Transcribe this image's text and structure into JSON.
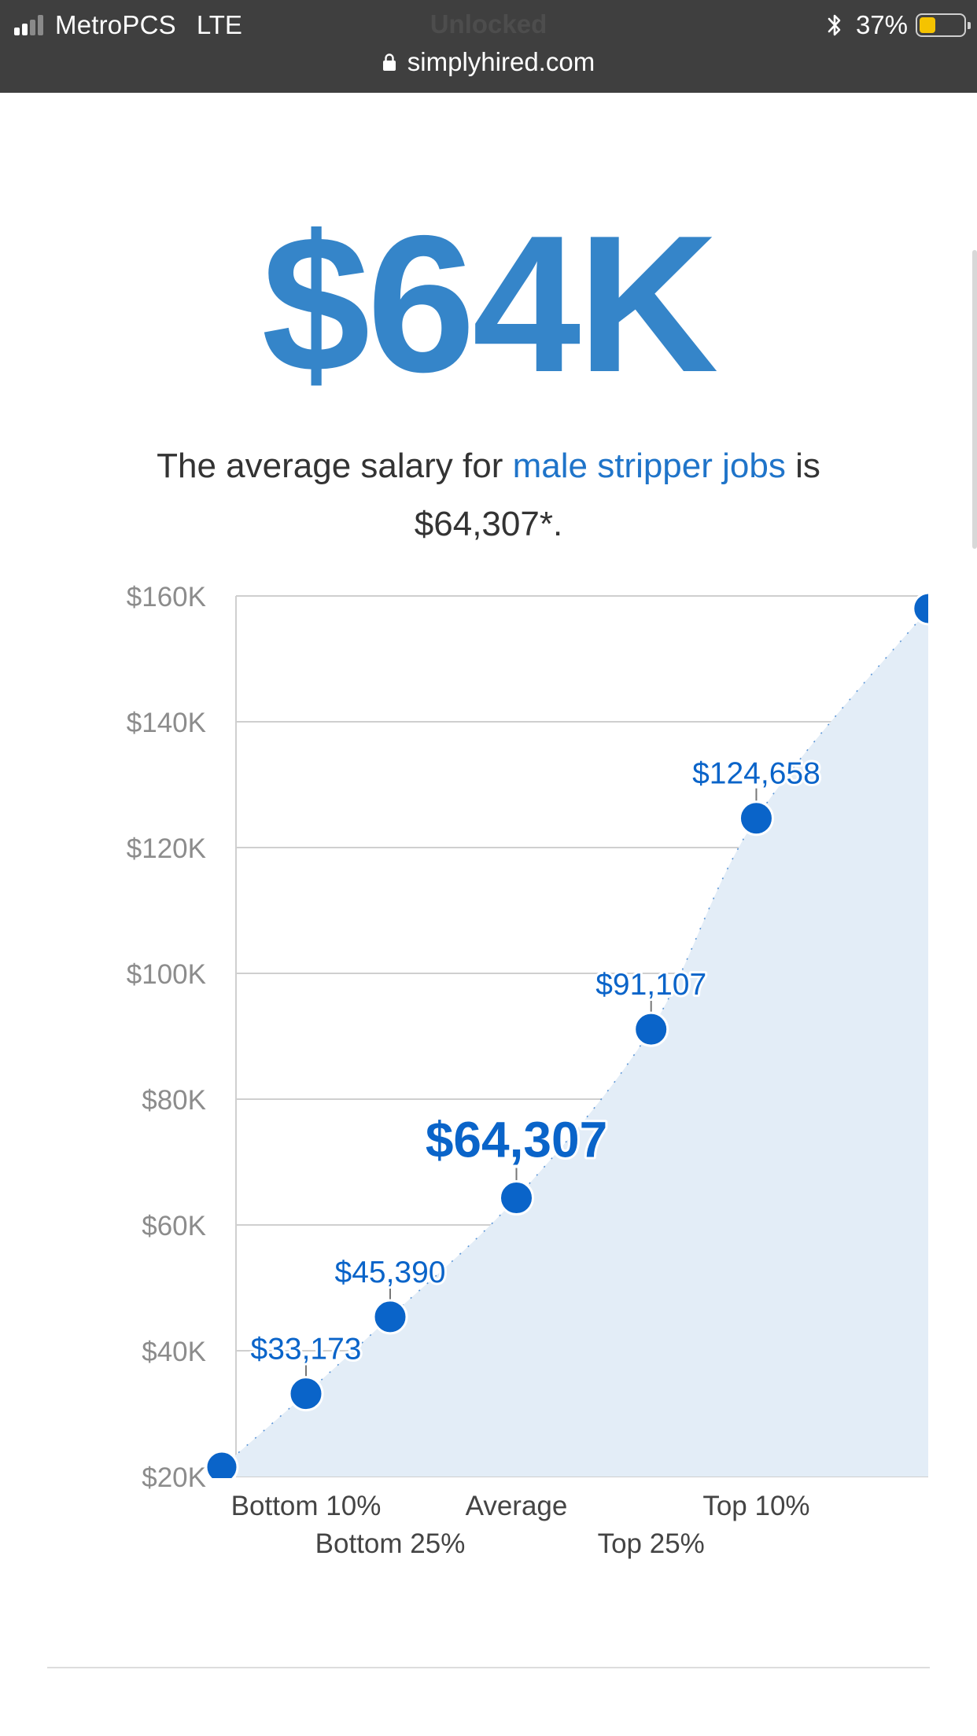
{
  "status_bar": {
    "carrier": "MetroPCS",
    "network": "LTE",
    "center_text": "Unlocked",
    "battery_percent": "37%",
    "battery_level": 0.37,
    "url": "simplyhired.com",
    "icons": [
      "signal-icon",
      "bluetooth-icon",
      "battery-icon",
      "lock-icon"
    ]
  },
  "headline": "$64K",
  "description": {
    "prefix": "The average salary for ",
    "link": "male stripper jobs",
    "suffix": " is $64,307*."
  },
  "colors": {
    "accent": "#3585c9",
    "point": "#0a64c9",
    "link": "#1f74c9",
    "area": "#e3edf7"
  },
  "chart_data": {
    "type": "area",
    "y_ticks": [
      "$20K",
      "$40K",
      "$60K",
      "$80K",
      "$100K",
      "$120K",
      "$140K",
      "$160K"
    ],
    "y_tick_values": [
      20000,
      40000,
      60000,
      80000,
      100000,
      120000,
      140000,
      160000
    ],
    "ylim": [
      20000,
      160000
    ],
    "grid": true,
    "points": [
      {
        "x": 0,
        "value": 21500,
        "label": ""
      },
      {
        "x": 1,
        "value": 33173,
        "label": "$33,173"
      },
      {
        "x": 2,
        "value": 45390,
        "label": "$45,390"
      },
      {
        "x": 3.5,
        "value": 64307,
        "label": "$64,307",
        "emphasis": true
      },
      {
        "x": 5.1,
        "value": 91107,
        "label": "$91,107"
      },
      {
        "x": 6.35,
        "value": 124658,
        "label": "$124,658"
      },
      {
        "x": 8.4,
        "value": 158000,
        "label": ""
      }
    ],
    "x_labels": [
      {
        "x": 1,
        "text": "Bottom 10%",
        "row": 0
      },
      {
        "x": 2,
        "text": "Bottom 25%",
        "row": 1
      },
      {
        "x": 3.5,
        "text": "Average",
        "row": 0
      },
      {
        "x": 5.1,
        "text": "Top 25%",
        "row": 1
      },
      {
        "x": 6.35,
        "text": "Top 10%",
        "row": 0
      }
    ]
  }
}
